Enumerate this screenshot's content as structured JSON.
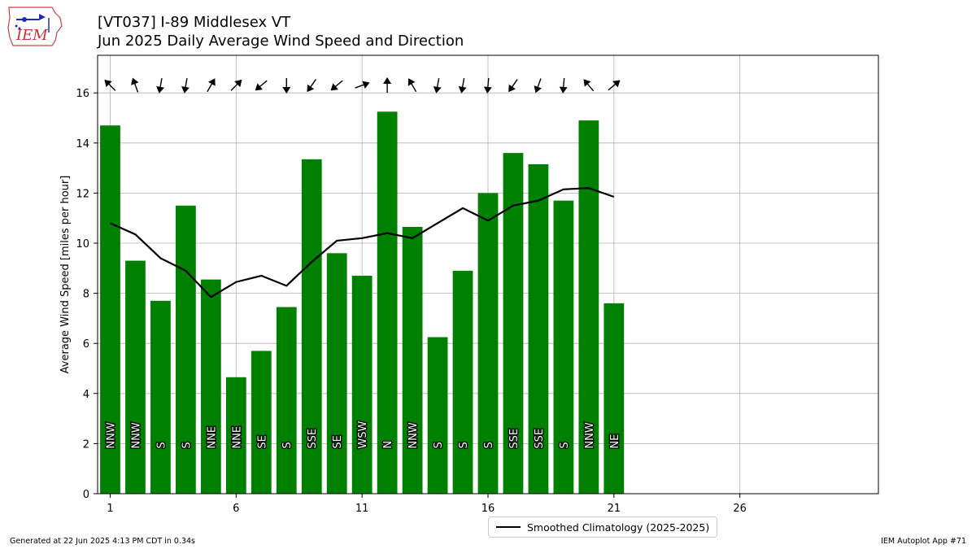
{
  "header": {
    "title_line1": "[VT037] I-89 Middlesex  VT",
    "title_line2": "Jun 2025 Daily Average Wind Speed and Direction"
  },
  "logo": {
    "text": "IEM",
    "icon": "iowa-state-outline-logo"
  },
  "footer": {
    "generated": "Generated at 22 Jun 2025 4:13 PM CDT in 0.34s",
    "app": "IEM Autoplot App #71"
  },
  "legend": {
    "label": "Smoothed Climatology (2025-2025)"
  },
  "colors": {
    "bar": "#008000",
    "line": "#000000",
    "grid": "#b0b0b0"
  },
  "chart_data": {
    "type": "bar",
    "title": "[VT037] I-89 Middlesex  VT",
    "subtitle": "Jun 2025 Daily Average Wind Speed and Direction",
    "xlabel": "",
    "ylabel": "Average Wind Speed [miles per hour]",
    "xlim": [
      0.5,
      31.5
    ],
    "ylim": [
      0,
      17.5
    ],
    "xticks": [
      1,
      6,
      11,
      16,
      21,
      26
    ],
    "yticks": [
      0,
      2,
      4,
      6,
      8,
      10,
      12,
      14,
      16
    ],
    "grid": true,
    "legend_position": "bottom-center",
    "days": [
      1,
      2,
      3,
      4,
      5,
      6,
      7,
      8,
      9,
      10,
      11,
      12,
      13,
      14,
      15,
      16,
      17,
      18,
      19,
      20,
      21
    ],
    "values": [
      14.7,
      9.3,
      7.7,
      11.5,
      8.55,
      4.65,
      5.7,
      7.45,
      13.35,
      9.6,
      8.7,
      15.25,
      10.65,
      6.25,
      8.9,
      12.0,
      13.6,
      13.15,
      11.7,
      14.9,
      7.6
    ],
    "directions": [
      "NNW",
      "NNW",
      "S",
      "S",
      "NNE",
      "NNE",
      "SE",
      "S",
      "SSE",
      "SE",
      "WSW",
      "N",
      "NNW",
      "S",
      "S",
      "S",
      "SSE",
      "SSE",
      "S",
      "NNW",
      "NE"
    ],
    "arrow_angles_deg": [
      -45,
      -20,
      -170,
      -170,
      30,
      45,
      -130,
      180,
      -145,
      -130,
      70,
      0,
      -30,
      -170,
      -170,
      -175,
      -145,
      -160,
      -175,
      -40,
      50
    ],
    "series": [
      {
        "name": "Smoothed Climatology (2025-2025)",
        "type": "line",
        "values": [
          10.8,
          10.35,
          9.4,
          8.9,
          7.85,
          8.45,
          8.7,
          8.3,
          9.25,
          10.1,
          10.2,
          10.4,
          10.2,
          10.8,
          11.4,
          10.9,
          11.5,
          11.7,
          12.15,
          12.2,
          11.85
        ]
      }
    ]
  }
}
